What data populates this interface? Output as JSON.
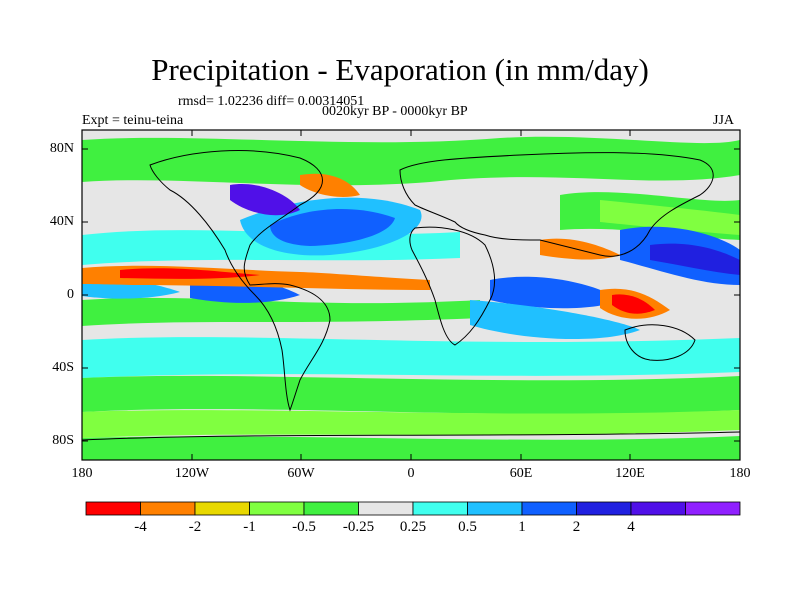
{
  "title": "Precipitation - Evaporation (in mm/day)",
  "subtitle_stats": "rmsd= 1.02236 diff= 0.00314051",
  "subtitle_period": "0020kyr BP - 0000kyr BP",
  "expt_label": "Expt = teinu-teina",
  "season": "JJA",
  "lat_labels": [
    "80N",
    "40N",
    "0",
    "40S",
    "80S"
  ],
  "lon_labels": [
    "180",
    "120W",
    "60W",
    "0",
    "60E",
    "120E",
    "180"
  ],
  "colorbar": {
    "colors": [
      "#ff0000",
      "#ff8000",
      "#e8d800",
      "#80ff40",
      "#40f040",
      "#e6e6e6",
      "#40ffee",
      "#20c0ff",
      "#1060ff",
      "#2020e0",
      "#5010e8",
      "#9020ff"
    ],
    "labels": [
      "-4",
      "-2",
      "-1",
      "-0.5",
      "-0.25",
      "0.25",
      "0.5",
      "1",
      "2",
      "4"
    ]
  }
}
